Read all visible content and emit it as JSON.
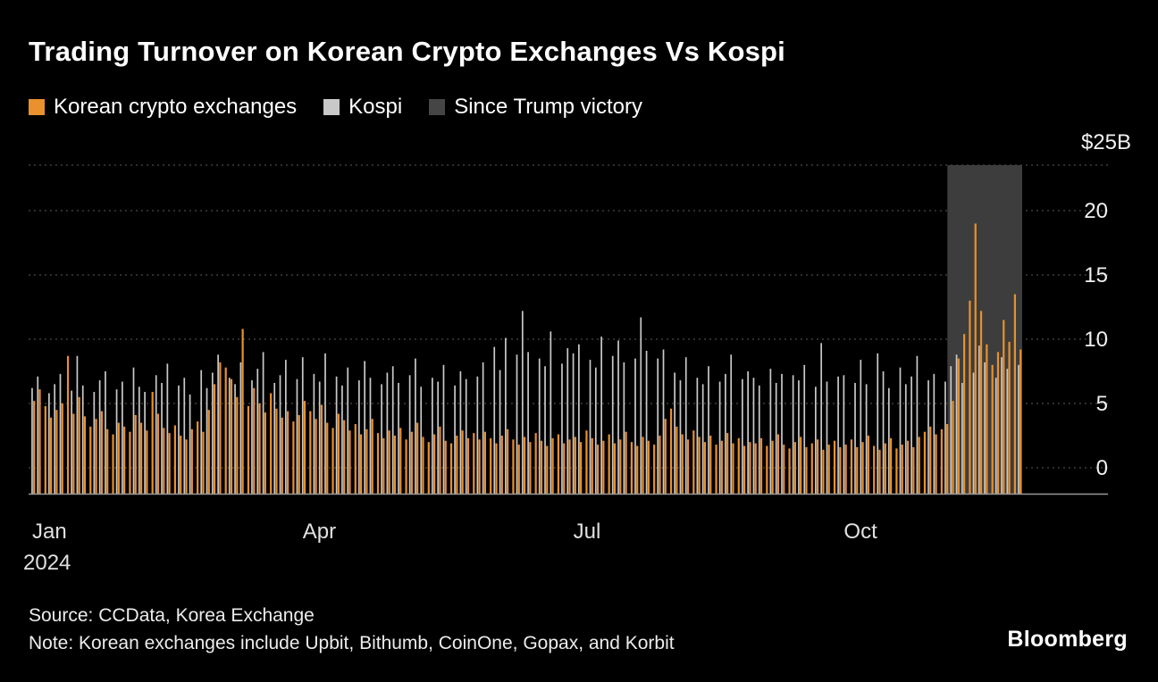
{
  "title": "Trading Turnover on Korean Crypto Exchanges Vs Kospi",
  "legend": [
    {
      "label": "Korean crypto exchanges",
      "color": "#e8912d"
    },
    {
      "label": "Kospi",
      "color": "#c9c9c9"
    },
    {
      "label": "Since Trump victory",
      "color": "#454545"
    }
  ],
  "source_line": "Source: CCData, Korea Exchange",
  "note_line": "Note: Korean exchanges include Upbit, Bithumb, CoinOne, Gopax, and Korbit",
  "brand": "Bloomberg",
  "chart_data": {
    "type": "bar",
    "unit": "$B",
    "title": "Trading Turnover on Korean Crypto Exchanges Vs Kospi",
    "ylim": [
      0,
      25
    ],
    "top_axis_label": "$25B",
    "y_ticks": [
      0,
      5,
      10,
      15,
      20
    ],
    "grid": true,
    "x_ticks": [
      {
        "label": "Jan",
        "sub": "2024",
        "index": 0
      },
      {
        "label": "Apr",
        "index": 48
      },
      {
        "label": "Jul",
        "index": 96
      },
      {
        "label": "Oct",
        "index": 144
      }
    ],
    "highlight": {
      "label": "Since Trump victory",
      "start_index": 163,
      "color": "#3d3d3d"
    },
    "series": [
      {
        "name": "Korean crypto exchanges",
        "color": "#e8912d",
        "values": [
          5.2,
          6.1,
          4.8,
          3.9,
          4.5,
          5.0,
          8.7,
          4.2,
          5.5,
          4.0,
          3.2,
          3.8,
          4.4,
          3.0,
          2.6,
          3.5,
          3.2,
          2.8,
          4.1,
          3.5,
          2.9,
          5.9,
          4.2,
          3.1,
          2.7,
          3.3,
          2.5,
          2.2,
          3.0,
          3.6,
          2.8,
          4.5,
          6.5,
          8.2,
          7.8,
          6.9,
          5.5,
          10.8,
          4.8,
          6.2,
          5.0,
          4.3,
          5.8,
          4.6,
          3.9,
          4.4,
          3.6,
          4.1,
          5.2,
          4.4,
          3.8,
          4.9,
          3.5,
          3.1,
          4.2,
          3.7,
          2.9,
          3.4,
          2.6,
          3.0,
          3.8,
          2.7,
          2.3,
          2.9,
          2.5,
          3.1,
          2.2,
          2.8,
          3.5,
          2.4,
          2.0,
          2.6,
          3.2,
          2.1,
          1.9,
          2.5,
          2.9,
          2.3,
          2.7,
          2.2,
          2.8,
          2.3,
          1.9,
          2.5,
          3.0,
          2.2,
          1.8,
          2.4,
          2.0,
          2.7,
          2.1,
          1.7,
          2.3,
          2.6,
          1.9,
          2.2,
          2.4,
          2.0,
          2.9,
          2.3,
          1.8,
          2.1,
          2.6,
          1.9,
          2.2,
          2.8,
          2.0,
          1.7,
          2.4,
          2.1,
          1.8,
          2.5,
          3.8,
          4.6,
          3.2,
          2.6,
          2.2,
          2.9,
          2.4,
          2.0,
          2.5,
          1.8,
          2.1,
          2.7,
          1.9,
          2.3,
          1.7,
          2.0,
          1.9,
          2.3,
          1.7,
          2.1,
          2.6,
          1.8,
          1.5,
          2.0,
          2.4,
          1.6,
          1.9,
          2.2,
          1.4,
          1.8,
          2.1,
          1.6,
          1.8,
          2.2,
          1.6,
          2.0,
          2.5,
          1.7,
          1.4,
          1.9,
          2.3,
          1.5,
          1.8,
          2.1,
          1.6,
          2.4,
          2.8,
          3.2,
          2.6,
          3.0,
          3.4,
          5.2,
          8.5,
          10.4,
          13.0,
          19.0,
          12.2,
          9.6,
          8.0,
          9.0,
          11.5,
          9.8,
          13.5,
          9.2
        ]
      },
      {
        "name": "Kospi",
        "color": "#c9c9c9",
        "values": [
          6.2,
          7.1,
          0,
          5.8,
          6.5,
          7.3,
          0,
          6.0,
          8.7,
          6.4,
          0,
          5.9,
          6.8,
          7.5,
          0,
          6.1,
          6.7,
          0,
          7.8,
          6.3,
          5.9,
          0,
          7.2,
          6.6,
          8.1,
          0,
          6.4,
          7.0,
          5.7,
          0,
          7.6,
          6.2,
          7.4,
          8.8,
          0,
          7.0,
          6.5,
          8.2,
          0,
          6.8,
          7.7,
          9.0,
          0,
          6.6,
          7.2,
          8.4,
          0,
          6.9,
          8.6,
          0,
          7.3,
          6.7,
          8.9,
          0,
          7.1,
          6.4,
          7.8,
          0,
          6.8,
          8.3,
          7.0,
          0,
          6.5,
          7.4,
          7.9,
          6.6,
          0,
          7.2,
          8.5,
          6.3,
          0,
          7.0,
          6.7,
          8.0,
          0,
          6.4,
          7.5,
          6.9,
          0,
          7.1,
          8.2,
          0,
          9.4,
          7.6,
          10.1,
          0,
          8.8,
          12.2,
          9.0,
          0,
          8.5,
          7.9,
          10.6,
          0,
          8.1,
          9.3,
          8.9,
          9.6,
          0,
          8.4,
          7.8,
          10.2,
          0,
          8.7,
          9.9,
          8.2,
          0,
          8.5,
          11.7,
          9.1,
          0,
          8.5,
          9.2,
          0,
          7.4,
          6.8,
          8.6,
          0,
          7.0,
          6.5,
          7.9,
          0,
          6.7,
          7.3,
          8.8,
          0,
          6.9,
          7.5,
          7.0,
          6.4,
          0,
          7.7,
          6.6,
          7.3,
          0,
          7.2,
          6.8,
          8.0,
          0,
          6.3,
          9.7,
          6.7,
          0,
          7.1,
          7.2,
          0,
          6.6,
          8.4,
          6.5,
          0,
          8.9,
          7.5,
          6.2,
          0,
          7.8,
          6.5,
          7.1,
          8.7,
          0,
          6.8,
          7.3,
          0,
          6.7,
          7.9,
          8.8,
          6.6,
          0,
          7.4,
          9.5,
          8.2,
          0,
          7.0,
          8.6,
          7.7,
          0,
          8.0
        ]
      }
    ]
  }
}
